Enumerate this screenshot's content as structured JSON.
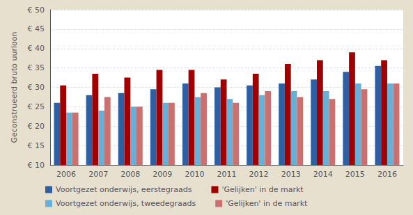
{
  "chart_data": {
    "type": "bar",
    "categories": [
      "2006",
      "2007",
      "2008",
      "2009",
      "2010",
      "2011",
      "2012",
      "2013",
      "2014",
      "2015",
      "2016"
    ],
    "ylabel": "Geconstrueerd bruto uurloon",
    "ylim": [
      10,
      50
    ],
    "yticks": [
      {
        "value": 10,
        "label": "€ 10"
      },
      {
        "value": 15,
        "label": "€ 15"
      },
      {
        "value": 20,
        "label": "€ 20"
      },
      {
        "value": 25,
        "label": "€ 25"
      },
      {
        "value": 30,
        "label": "€ 30"
      },
      {
        "value": 35,
        "label": "€ 35"
      },
      {
        "value": 40,
        "label": "€ 40"
      },
      {
        "value": 45,
        "label": "€ 45"
      },
      {
        "value": 50,
        "label": "€ 50"
      }
    ],
    "grid": true,
    "legend": "bottom",
    "series": [
      {
        "name": "Voortgezet onderwijs, eerstegraads",
        "color": "#2E5FA3",
        "values": [
          26,
          28,
          28.5,
          29.5,
          31,
          30,
          30.5,
          31,
          32,
          34,
          35.5
        ]
      },
      {
        "name": "'Gelijken' in de markt",
        "color": "#A00000",
        "values": [
          30.5,
          33.5,
          32.5,
          34.5,
          34.5,
          32,
          33.5,
          36,
          37,
          39,
          37
        ]
      },
      {
        "name": "Voortgezet onderwijs, tweedegraads",
        "color": "#6AAFD6",
        "values": [
          23.5,
          24,
          25,
          26,
          27.5,
          27,
          28,
          29,
          29,
          31,
          31
        ]
      },
      {
        "name": "'Gelijken' in de markt",
        "color": "#C97070",
        "values": [
          23.5,
          27.5,
          25,
          26,
          28.5,
          26,
          29,
          27.5,
          27,
          29.5,
          31
        ]
      }
    ]
  }
}
